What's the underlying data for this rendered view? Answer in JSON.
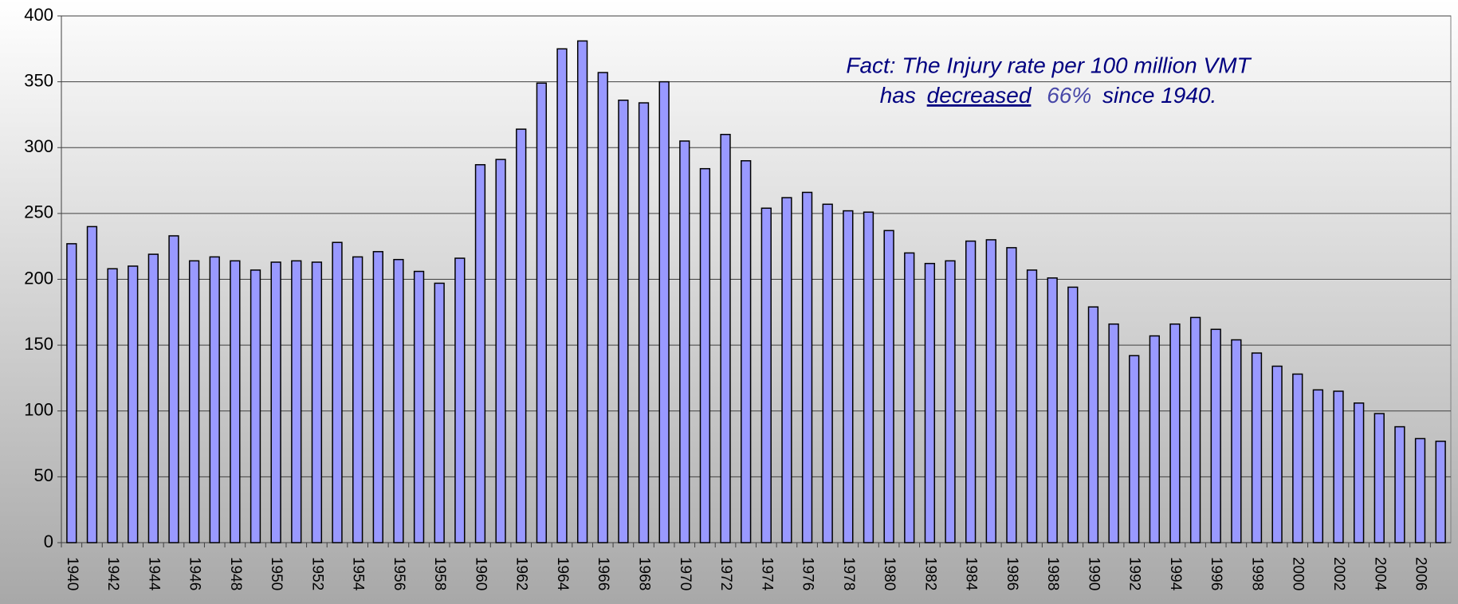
{
  "chart_data": {
    "type": "bar",
    "categories": [
      "1940",
      null,
      "1942",
      null,
      "1944",
      null,
      "1946",
      null,
      "1948",
      null,
      "1950",
      null,
      "1952",
      null,
      "1954",
      null,
      "1956",
      null,
      "1958",
      null,
      "1960",
      null,
      "1962",
      null,
      "1964",
      null,
      "1966",
      null,
      "1968",
      null,
      "1970",
      null,
      "1972",
      null,
      "1974",
      null,
      "1976",
      null,
      "1978",
      null,
      "1980",
      null,
      "1982",
      null,
      "1984",
      null,
      "1986",
      null,
      "1988",
      null,
      "1990",
      null,
      "1992",
      null,
      "1994",
      null,
      "1996",
      null,
      "1998",
      null,
      "2000",
      null,
      "2002",
      null,
      "2004",
      null,
      "2006",
      null
    ],
    "values": [
      227,
      240,
      208,
      210,
      219,
      233,
      214,
      217,
      214,
      207,
      213,
      214,
      213,
      228,
      217,
      221,
      215,
      206,
      197,
      216,
      287,
      291,
      314,
      349,
      375,
      381,
      357,
      336,
      334,
      350,
      305,
      284,
      310,
      290,
      254,
      262,
      266,
      257,
      252,
      251,
      237,
      220,
      212,
      214,
      229,
      230,
      224,
      207,
      201,
      194,
      179,
      166,
      142,
      157,
      166,
      171,
      162,
      154,
      144,
      134,
      128,
      116,
      115,
      106,
      98,
      88,
      79,
      77
    ],
    "color": "#9999ff",
    "ylim": [
      0,
      400
    ],
    "yticks": [
      0,
      50,
      100,
      150,
      200,
      250,
      300,
      350,
      400
    ],
    "grid": true,
    "annotation": {
      "line1": "Fact: The Injury rate per 100 million VMT",
      "line2": [
        "has",
        "decreased",
        "66%",
        "since 1940."
      ]
    }
  }
}
